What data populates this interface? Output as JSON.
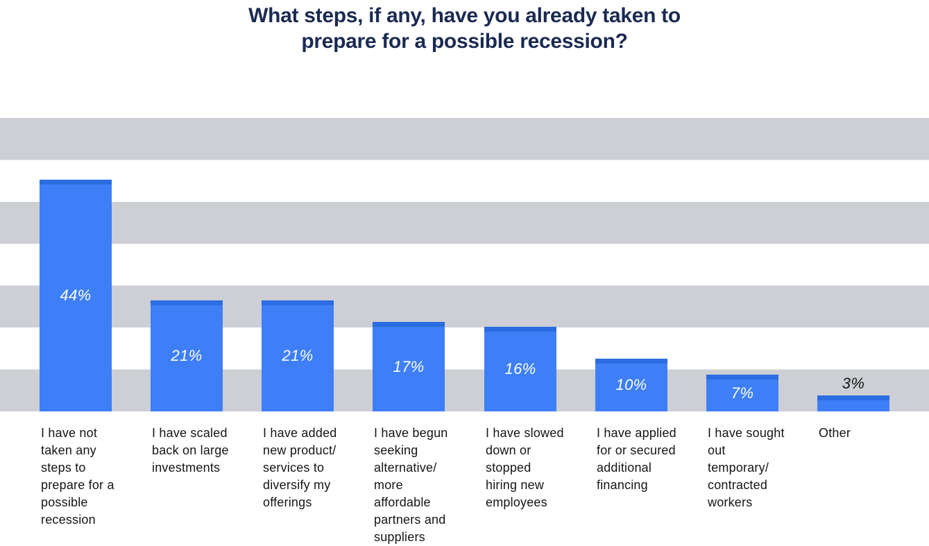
{
  "title": {
    "line1": "What steps, if any, have you already taken to",
    "line2": "prepare for a possible recession?",
    "full": "What steps, if any, have you already taken to prepare for a possible recession?"
  },
  "chart_data": {
    "type": "bar",
    "title": "What steps, if any, have you already taken to prepare for a possible recession?",
    "categories": [
      "I have not taken any steps to prepare for a possible recession",
      "I have scaled back on large investments",
      "I have added new product/ services to diversify my offerings",
      "I have begun seeking alternative/ more affordable partners and suppliers",
      "I have slowed down or stopped hiring new employees",
      "I have applied for or secured additional financing",
      "I have sought out temporary/ contracted workers",
      "Other"
    ],
    "categories_wrapped": [
      "I have not\ntaken any\nsteps to\nprepare for a\npossible\nrecession",
      "I have scaled\nback on large\ninvestments",
      "I have added\nnew product/\nservices to\ndiversify my\nofferings",
      "I have begun\nseeking\nalternative/\nmore\naffordable\npartners and\nsuppliers",
      "I have slowed\ndown or\nstopped\nhiring new\nemployees",
      "I have applied\nfor or secured\nadditional\nfinancing",
      "I have sought\nout\ntemporary/\ncontracted\nworkers",
      "Other"
    ],
    "values": [
      44,
      21,
      21,
      17,
      16,
      10,
      7,
      3
    ],
    "value_labels": [
      "44%",
      "21%",
      "21%",
      "17%",
      "16%",
      "10%",
      "7%",
      "3%"
    ],
    "unit": "%",
    "xlabel": "",
    "ylabel": "",
    "ylim": [
      0,
      56
    ],
    "gridlines": {
      "style": "horizontal stripe bands",
      "interval_pct": 8,
      "bands_gray_on_top": true
    },
    "legend": "none",
    "value_label_placement": "inside bars, centered; above bar when bar too short (3%)",
    "colors": {
      "bar": "#3E7FF7",
      "bar_cap": "#2B6CE0",
      "stripe": "#CDCFD5",
      "title": "#1A2A52",
      "category_text": "#151515",
      "value_inside": "#FFFFFF",
      "value_outside": "#161616",
      "background": "#FFFFFF"
    }
  }
}
